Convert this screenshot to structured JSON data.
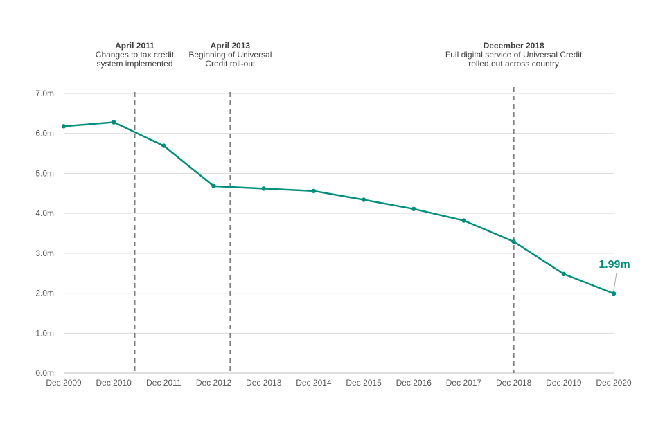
{
  "chart_data": {
    "type": "line",
    "categories": [
      "Dec 2009",
      "Dec 2010",
      "Dec 2011",
      "Dec 2012",
      "Dec 2013",
      "Dec 2014",
      "Dec 2015",
      "Dec 2016",
      "Dec 2017",
      "Dec 2018",
      "Dec 2019",
      "Dec 2020"
    ],
    "series": [
      {
        "values": [
          6.18,
          6.28,
          5.69,
          4.68,
          4.62,
          4.56,
          4.34,
          4.11,
          3.82,
          3.29,
          2.48,
          1.99
        ]
      }
    ],
    "yticks": [
      "0.0m",
      "1.0m",
      "2.0m",
      "3.0m",
      "4.0m",
      "5.0m",
      "6.0m",
      "7.0m"
    ],
    "ylim": [
      0,
      7
    ],
    "grid": "horizontal",
    "line_color": "#008f7d",
    "end_label": "1.99m",
    "annotations": [
      {
        "title": "April 2011",
        "lines": [
          "Changes to tax credit",
          "system implemented"
        ],
        "x_position": 1.42
      },
      {
        "title": "April 2013",
        "lines": [
          "Beginning of Universal",
          "Credit roll-out"
        ],
        "x_position": 3.33
      },
      {
        "title": "December 2018",
        "lines": [
          "Full digital service of Universal Credit",
          "rolled out across country"
        ],
        "x_position": 9.0
      }
    ]
  }
}
